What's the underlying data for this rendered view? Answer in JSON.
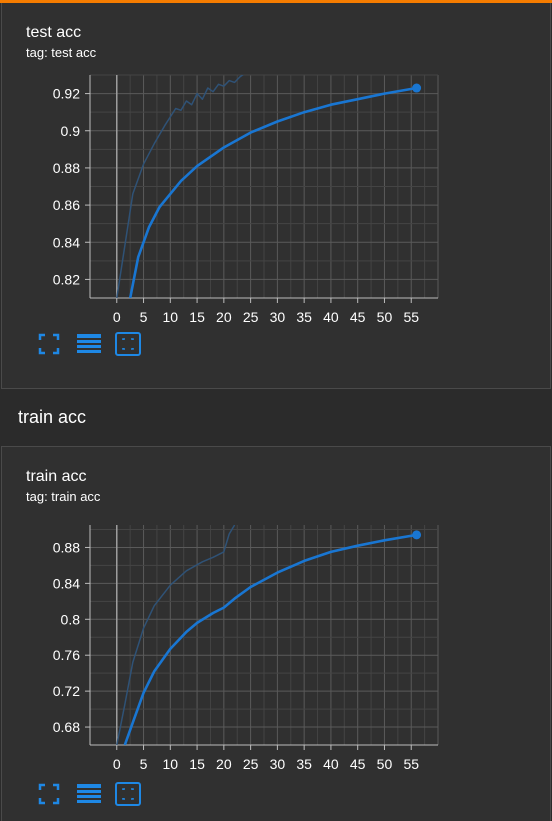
{
  "accent_color": "#1e78c8",
  "section": {
    "title": "train acc"
  },
  "cards": [
    {
      "title": "test acc",
      "tag": "tag: test acc",
      "chart_data": {
        "type": "line",
        "xlim": [
          -5,
          60
        ],
        "ylim": [
          0.81,
          0.93
        ],
        "x_ticks": [
          0,
          5,
          10,
          15,
          20,
          25,
          30,
          35,
          40,
          45,
          50,
          55
        ],
        "y_ticks": [
          0.82,
          0.84,
          0.86,
          0.88,
          0.9,
          0.92
        ],
        "y_tick_labels": [
          "0.82",
          "0.84",
          "0.86",
          "0.88",
          "0.9",
          "0.92"
        ],
        "grid": true,
        "series": [
          {
            "style": "smoothed",
            "color": "#1976d2",
            "x": [
              2.5,
              4,
              6,
              8,
              10,
              12,
              15,
              18,
              20,
              25,
              30,
              35,
              40,
              45,
              50,
              56
            ],
            "y": [
              0.81,
              0.832,
              0.848,
              0.859,
              0.866,
              0.873,
              0.881,
              0.887,
              0.891,
              0.899,
              0.905,
              0.91,
              0.914,
              0.917,
              0.92,
              0.923
            ],
            "last_point_marker": true
          },
          {
            "style": "faint-raw",
            "color": "#2f5276",
            "x": [
              0,
              1.5,
              3,
              5,
              7,
              9,
              11,
              12,
              13,
              14,
              15,
              16,
              17,
              18,
              19,
              20,
              21,
              22,
              23,
              24
            ],
            "y": [
              0.81,
              0.838,
              0.866,
              0.882,
              0.893,
              0.903,
              0.912,
              0.911,
              0.916,
              0.914,
              0.92,
              0.917,
              0.923,
              0.921,
              0.925,
              0.924,
              0.927,
              0.926,
              0.929,
              0.931
            ]
          }
        ]
      }
    },
    {
      "title": "train acc",
      "tag": "tag: train acc",
      "chart_data": {
        "type": "line",
        "xlim": [
          -5,
          60
        ],
        "ylim": [
          0.66,
          0.905
        ],
        "x_ticks": [
          0,
          5,
          10,
          15,
          20,
          25,
          30,
          35,
          40,
          45,
          50,
          55
        ],
        "y_ticks": [
          0.68,
          0.72,
          0.76,
          0.8,
          0.84,
          0.88
        ],
        "y_tick_labels": [
          "0.68",
          "0.72",
          "0.76",
          "0.8",
          "0.84",
          "0.88"
        ],
        "grid": true,
        "series": [
          {
            "style": "smoothed",
            "color": "#1976d2",
            "x": [
              1.5,
              3,
              5,
              7,
              10,
              13,
              15,
              18,
              20,
              22,
              25,
              30,
              35,
              40,
              45,
              50,
              56
            ],
            "y": [
              0.66,
              0.685,
              0.718,
              0.742,
              0.767,
              0.786,
              0.796,
              0.807,
              0.813,
              0.823,
              0.836,
              0.852,
              0.865,
              0.875,
              0.882,
              0.888,
              0.894
            ]
          },
          {
            "style": "faint-raw",
            "color": "#2f5276",
            "x": [
              0,
              1.5,
              3,
              5,
              7,
              10,
              13,
              16,
              18,
              20,
              21,
              22
            ],
            "y": [
              0.66,
              0.705,
              0.752,
              0.79,
              0.815,
              0.838,
              0.854,
              0.864,
              0.869,
              0.875,
              0.895,
              0.905
            ]
          }
        ]
      }
    }
  ],
  "toolbar": {
    "fullscreen_icon": "fullscreen-icon",
    "data_table_icon": "data-table-icon",
    "fit_domain_icon": "fit-domain-icon"
  }
}
